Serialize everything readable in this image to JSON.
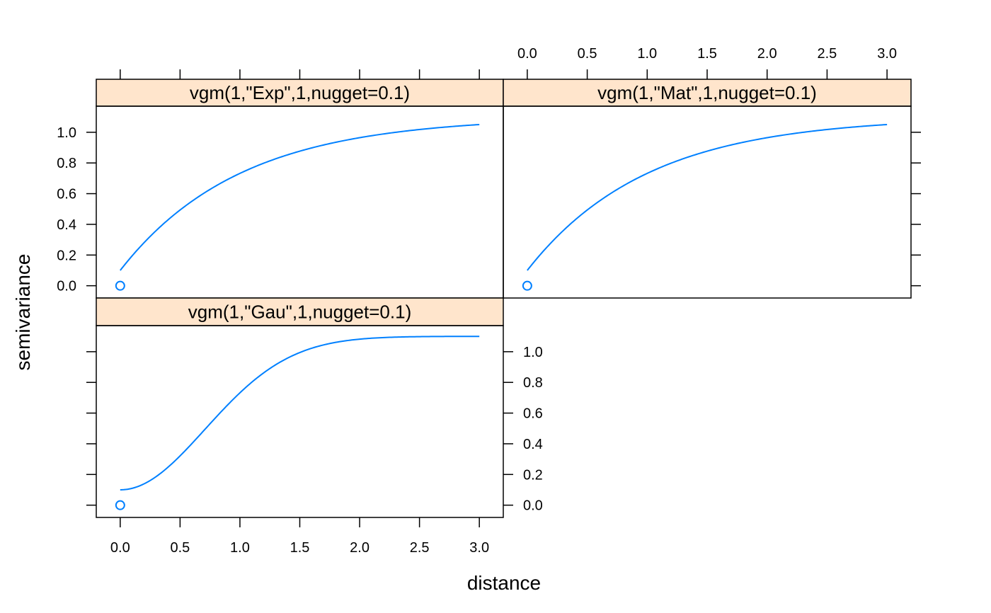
{
  "chart_data": {
    "type": "line",
    "xlabel": "distance",
    "ylabel": "semivariance",
    "xlim": [
      -0.2,
      3.2
    ],
    "ylim": [
      -0.08,
      1.17
    ],
    "x_ticks": [
      "0.0",
      "0.5",
      "1.0",
      "1.5",
      "2.0",
      "2.5",
      "3.0"
    ],
    "y_ticks": [
      "0.0",
      "0.2",
      "0.4",
      "0.6",
      "0.8",
      "1.0"
    ],
    "colors": {
      "line": "#0080ff",
      "strip": "#ffe5cc",
      "axis": "#000000"
    },
    "panels": [
      {
        "title": "vgm(1,\"Exp\",1,nugget=0.1)",
        "model": "Exp",
        "nugget": 0.1,
        "psill": 1,
        "range": 1,
        "points": [
          {
            "x": 0.0,
            "y": 0.0
          }
        ]
      },
      {
        "title": "vgm(1,\"Mat\",1,nugget=0.1)",
        "model": "Mat",
        "nugget": 0.1,
        "psill": 1,
        "range": 1,
        "points": [
          {
            "x": 0.0,
            "y": 0.0
          }
        ]
      },
      {
        "title": "vgm(1,\"Gau\",1,nugget=0.1)",
        "model": "Gau",
        "nugget": 0.1,
        "psill": 1,
        "range": 1,
        "points": [
          {
            "x": 0.0,
            "y": 0.0
          }
        ]
      }
    ]
  }
}
